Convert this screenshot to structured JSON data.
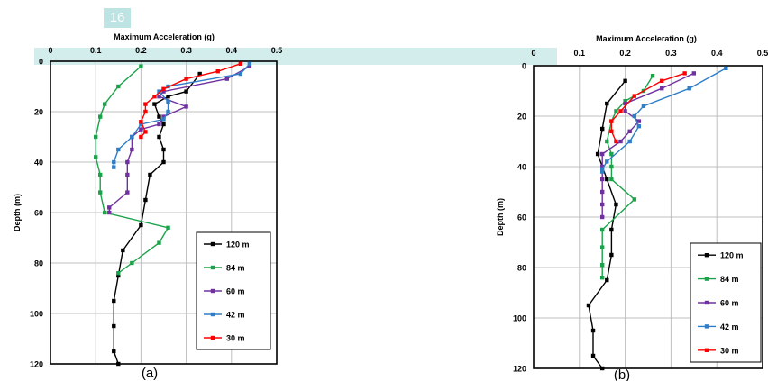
{
  "page_badge": "16",
  "chart_data": [
    {
      "type": "line",
      "panel_label": "(a)",
      "xlabel": "Maximum Acceleration (g)",
      "ylabel": "Depth (m)",
      "xlim": [
        0,
        0.5
      ],
      "ylim": [
        0,
        120
      ],
      "x_ticks": [
        "0",
        "0.1",
        "0.2",
        "0.3",
        "0.4",
        "0.5"
      ],
      "y_ticks": [
        "0",
        "20",
        "40",
        "60",
        "80",
        "100",
        "120"
      ],
      "y_inverted": true,
      "grid": true,
      "legend_position": "bottom-right",
      "series": [
        {
          "name": "120 m",
          "color": "#000000",
          "points": [
            [
              0.33,
              5
            ],
            [
              0.3,
              12
            ],
            [
              0.26,
              14
            ],
            [
              0.23,
              17
            ],
            [
              0.24,
              22
            ],
            [
              0.25,
              25
            ],
            [
              0.24,
              30
            ],
            [
              0.25,
              35
            ],
            [
              0.25,
              40
            ],
            [
              0.22,
              45
            ],
            [
              0.21,
              55
            ],
            [
              0.2,
              65
            ],
            [
              0.16,
              75
            ],
            [
              0.15,
              85
            ],
            [
              0.14,
              95
            ],
            [
              0.14,
              105
            ],
            [
              0.14,
              115
            ],
            [
              0.15,
              120
            ]
          ]
        },
        {
          "name": "84 m",
          "color": "#1aa34a",
          "points": [
            [
              0.2,
              2
            ],
            [
              0.15,
              10
            ],
            [
              0.12,
              17
            ],
            [
              0.11,
              22
            ],
            [
              0.1,
              30
            ],
            [
              0.1,
              38
            ],
            [
              0.11,
              45
            ],
            [
              0.11,
              52
            ],
            [
              0.12,
              60
            ],
            [
              0.26,
              66
            ],
            [
              0.24,
              72
            ],
            [
              0.18,
              80
            ],
            [
              0.15,
              84
            ]
          ]
        },
        {
          "name": "60 m",
          "color": "#7030a0",
          "points": [
            [
              0.44,
              2
            ],
            [
              0.39,
              7
            ],
            [
              0.25,
              12
            ],
            [
              0.24,
              14
            ],
            [
              0.3,
              18
            ],
            [
              0.25,
              22
            ],
            [
              0.24,
              25
            ],
            [
              0.2,
              27
            ],
            [
              0.18,
              30
            ],
            [
              0.18,
              35
            ],
            [
              0.17,
              40
            ],
            [
              0.17,
              45
            ],
            [
              0.17,
              52
            ],
            [
              0.13,
              58
            ],
            [
              0.13,
              60
            ]
          ]
        },
        {
          "name": "42 m",
          "color": "#2e7dc7",
          "points": [
            [
              0.44,
              1
            ],
            [
              0.42,
              5
            ],
            [
              0.26,
              10
            ],
            [
              0.24,
              12
            ],
            [
              0.26,
              16
            ],
            [
              0.26,
              20
            ],
            [
              0.25,
              23
            ],
            [
              0.2,
              25
            ],
            [
              0.18,
              30
            ],
            [
              0.15,
              35
            ],
            [
              0.14,
              40
            ],
            [
              0.14,
              42
            ]
          ]
        },
        {
          "name": "30 m",
          "color": "#ff0000",
          "points": [
            [
              0.42,
              1
            ],
            [
              0.37,
              4
            ],
            [
              0.3,
              7
            ],
            [
              0.25,
              11
            ],
            [
              0.23,
              14
            ],
            [
              0.21,
              17
            ],
            [
              0.21,
              20
            ],
            [
              0.2,
              24
            ],
            [
              0.21,
              28
            ],
            [
              0.2,
              30
            ]
          ]
        }
      ]
    },
    {
      "type": "line",
      "panel_label": "(b)",
      "xlabel": "Maximum Acceleration (g)",
      "ylabel": "Depth (m)",
      "xlim": [
        0,
        0.5
      ],
      "ylim": [
        0,
        120
      ],
      "x_ticks": [
        "0",
        "0.1",
        "0.2",
        "0.3",
        "0.4",
        "0.5"
      ],
      "y_ticks": [
        "0",
        "20",
        "40",
        "60",
        "80",
        "100",
        "120"
      ],
      "y_inverted": true,
      "grid": true,
      "legend_position": "bottom-right",
      "series": [
        {
          "name": "120 m",
          "color": "#000000",
          "points": [
            [
              0.2,
              6
            ],
            [
              0.16,
              15
            ],
            [
              0.15,
              25
            ],
            [
              0.14,
              35
            ],
            [
              0.16,
              45
            ],
            [
              0.18,
              55
            ],
            [
              0.17,
              65
            ],
            [
              0.17,
              75
            ],
            [
              0.16,
              85
            ],
            [
              0.12,
              95
            ],
            [
              0.13,
              105
            ],
            [
              0.13,
              115
            ],
            [
              0.15,
              120
            ]
          ]
        },
        {
          "name": "84 m",
          "color": "#1aa34a",
          "points": [
            [
              0.26,
              4
            ],
            [
              0.24,
              10
            ],
            [
              0.2,
              14
            ],
            [
              0.18,
              18
            ],
            [
              0.17,
              22
            ],
            [
              0.16,
              30
            ],
            [
              0.17,
              35
            ],
            [
              0.17,
              40
            ],
            [
              0.17,
              45
            ],
            [
              0.22,
              53
            ],
            [
              0.15,
              65
            ],
            [
              0.15,
              72
            ],
            [
              0.15,
              79
            ],
            [
              0.15,
              84
            ]
          ]
        },
        {
          "name": "60 m",
          "color": "#7030a0",
          "points": [
            [
              0.35,
              3
            ],
            [
              0.28,
              9
            ],
            [
              0.2,
              15
            ],
            [
              0.2,
              18
            ],
            [
              0.23,
              22
            ],
            [
              0.21,
              26
            ],
            [
              0.19,
              30
            ],
            [
              0.15,
              35
            ],
            [
              0.15,
              40
            ],
            [
              0.15,
              45
            ],
            [
              0.15,
              50
            ],
            [
              0.15,
              55
            ],
            [
              0.15,
              60
            ]
          ]
        },
        {
          "name": "42 m",
          "color": "#2e7dc7",
          "points": [
            [
              0.42,
              1
            ],
            [
              0.34,
              9
            ],
            [
              0.24,
              16
            ],
            [
              0.22,
              20
            ],
            [
              0.23,
              24
            ],
            [
              0.21,
              30
            ],
            [
              0.16,
              38
            ],
            [
              0.15,
              41
            ],
            [
              0.15,
              42
            ]
          ]
        },
        {
          "name": "30 m",
          "color": "#ff0000",
          "points": [
            [
              0.33,
              3
            ],
            [
              0.28,
              6
            ],
            [
              0.22,
              12
            ],
            [
              0.19,
              18
            ],
            [
              0.17,
              22
            ],
            [
              0.17,
              26
            ],
            [
              0.18,
              30
            ]
          ]
        }
      ]
    }
  ]
}
